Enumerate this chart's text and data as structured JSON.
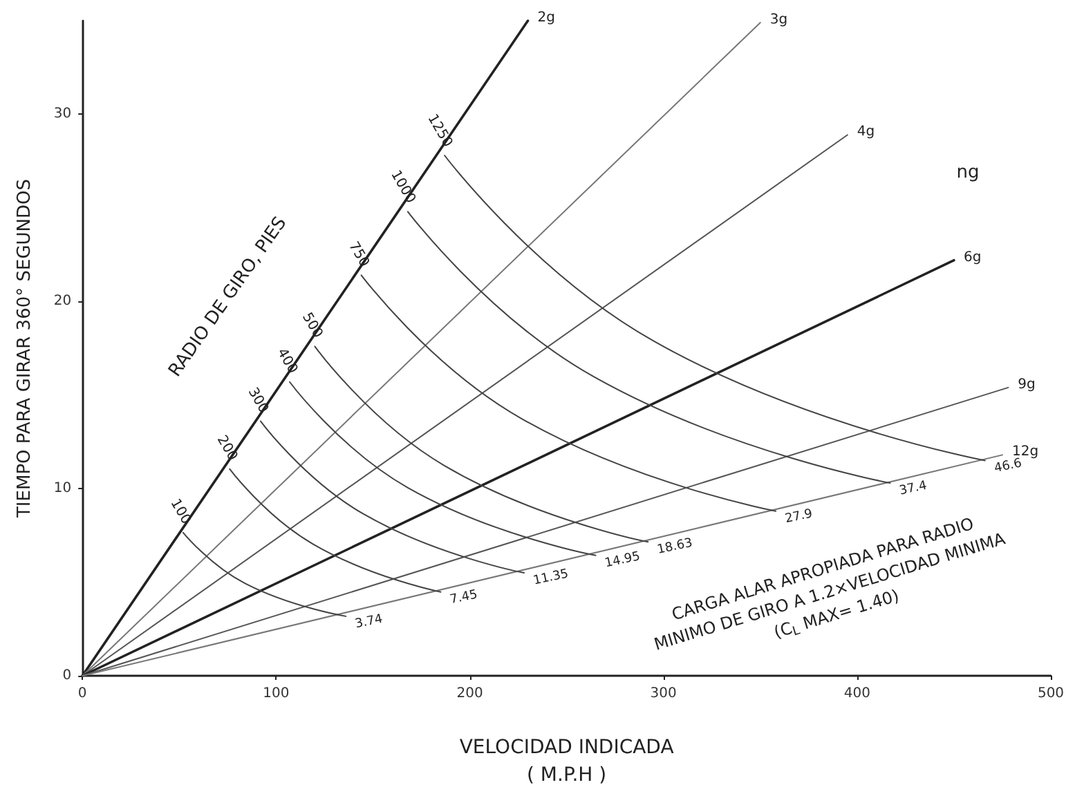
{
  "chart_data": {
    "type": "line",
    "xlabel": "VELOCIDAD INDICADA\n( M.P.H )",
    "ylabel": "TIEMPO PARA GIRAR 360° SEGUNDOS",
    "xlim": [
      0,
      500
    ],
    "xticks": [
      0,
      100,
      200,
      300,
      400,
      500
    ],
    "ylim": [
      0,
      35
    ],
    "yticks": [
      0,
      10,
      20,
      30
    ],
    "grid": false,
    "legend": false,
    "marker": "none",
    "line_style": "solid",
    "series": [
      {
        "name": "2g",
        "color": "#222222",
        "x": [
          0,
          230
        ],
        "values": [
          0,
          35
        ]
      },
      {
        "name": "3g",
        "color": "#777777",
        "x": [
          0,
          350
        ],
        "values": [
          0,
          34.9
        ]
      },
      {
        "name": "4g",
        "color": "#555555",
        "x": [
          0,
          395
        ],
        "values": [
          0,
          28.9
        ]
      },
      {
        "name": "6g",
        "color": "#222222",
        "x": [
          0,
          450
        ],
        "values": [
          0,
          22.2
        ]
      },
      {
        "name": "9g",
        "color": "#555555",
        "x": [
          0,
          478
        ],
        "values": [
          0,
          15.4
        ]
      },
      {
        "name": "12g",
        "color": "#777777",
        "x": [
          0,
          475
        ],
        "values": [
          0,
          11.8
        ]
      },
      {
        "name": "100",
        "color": "#444444",
        "x": [
          52,
          84,
          136
        ],
        "values": [
          7.65,
          4.93,
          3.18
        ]
      },
      {
        "name": "200",
        "color": "#444444",
        "x": [
          76,
          119,
          185
        ],
        "values": [
          11.05,
          7.04,
          4.48
        ]
      },
      {
        "name": "300",
        "color": "#444444",
        "x": [
          92,
          145,
          228
        ],
        "values": [
          13.6,
          8.65,
          5.5
        ]
      },
      {
        "name": "400",
        "color": "#444444",
        "x": [
          107,
          168,
          265
        ],
        "values": [
          15.7,
          10.05,
          6.43
        ]
      },
      {
        "name": "500",
        "color": "#444444",
        "x": [
          120,
          187,
          292
        ],
        "values": [
          17.6,
          11.22,
          7.15
        ]
      },
      {
        "name": "750",
        "color": "#444444",
        "x": [
          144,
          227,
          358
        ],
        "values": [
          21.4,
          13.72,
          8.8
        ]
      },
      {
        "name": "1000",
        "color": "#444444",
        "x": [
          168,
          264,
          417
        ],
        "values": [
          24.8,
          15.98,
          10.3
        ]
      },
      {
        "name": "1250",
        "color": "#444444",
        "x": [
          187,
          295,
          466
        ],
        "values": [
          27.8,
          17.88,
          11.5
        ]
      }
    ],
    "annotations": [
      "RADIO DE GIRO, PIES",
      "CARGA ALAR APROPIADA PARA RADIO\nMINIMO DE GIRO A 1.2×VELOCIDAD MINIMA\n(C$_{L}$ MAX= 1.40)",
      "ng",
      {
        "text": "3.74",
        "x": 136,
        "y": 3.18
      },
      {
        "text": "7.45",
        "x": 185,
        "y": 4.48
      },
      {
        "text": "11.35",
        "x": 228,
        "y": 5.5
      },
      {
        "text": "14.95",
        "x": 265,
        "y": 6.43
      },
      {
        "text": "18.63",
        "x": 292,
        "y": 7.15
      },
      {
        "text": "27.9",
        "x": 358,
        "y": 8.8
      },
      {
        "text": "37.4",
        "x": 417,
        "y": 10.3
      },
      {
        "text": "46.6",
        "x": 466,
        "y": 11.5
      }
    ]
  }
}
